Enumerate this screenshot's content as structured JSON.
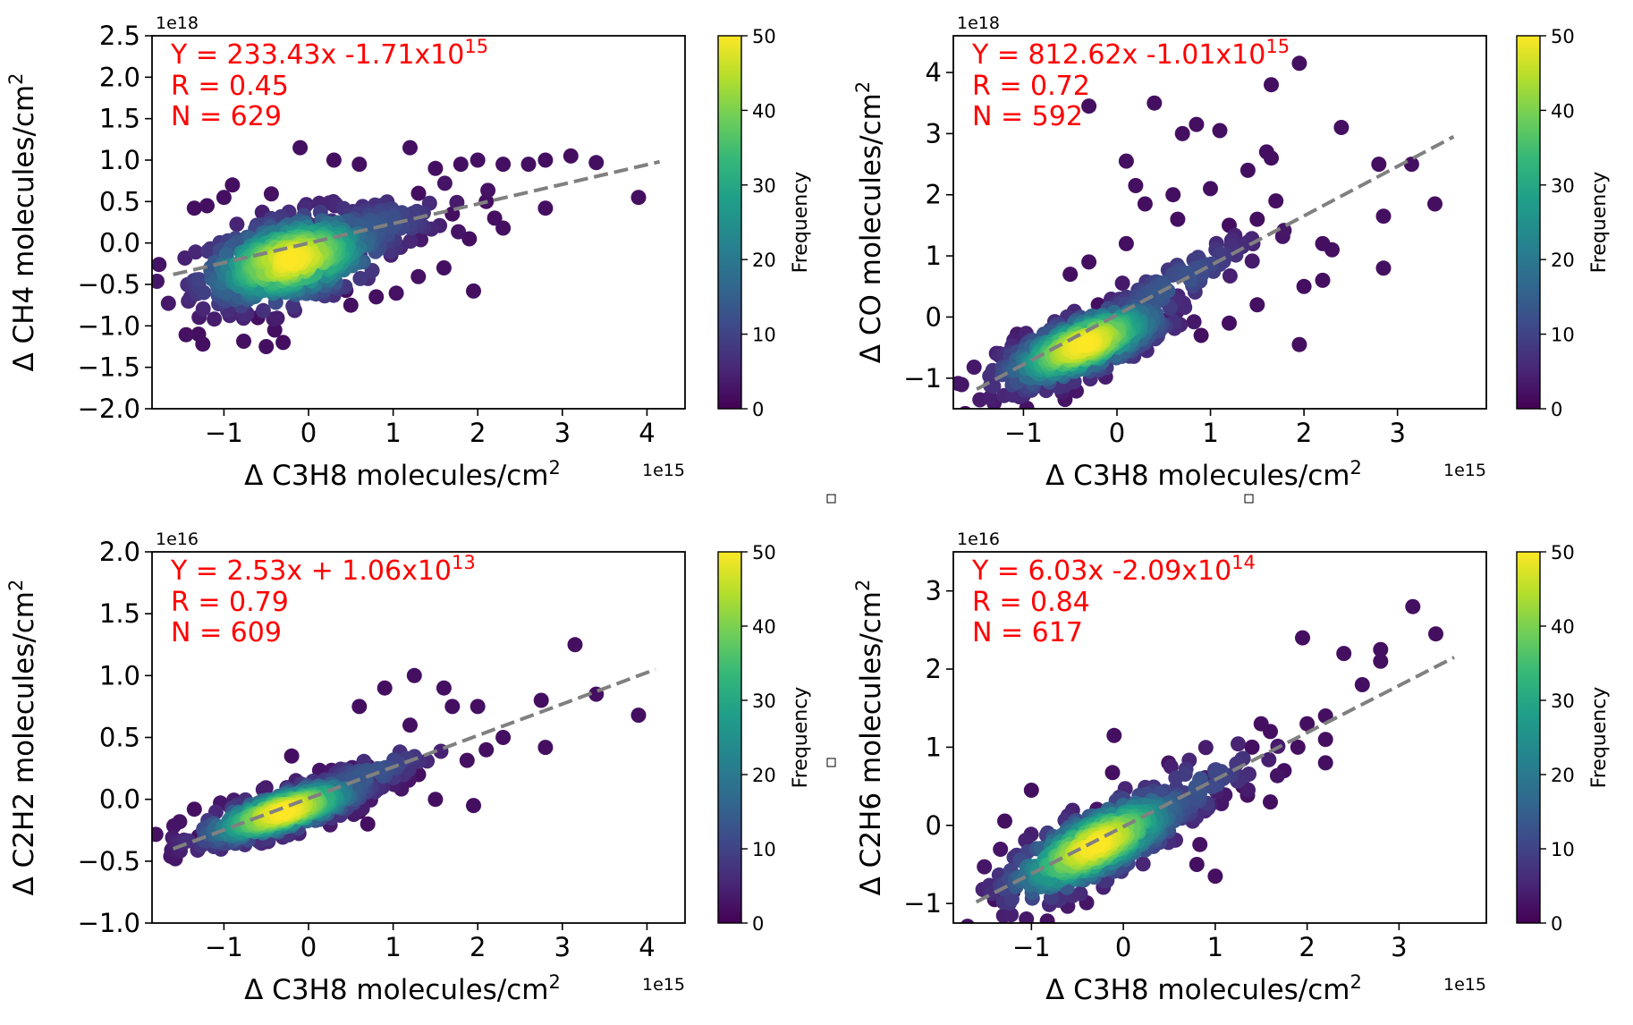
{
  "chart_data": [
    {
      "type": "scatter",
      "x_offset_label": "1e15",
      "y_offset_label": "1e18",
      "xlabel": "Δ C3H8 molecules/cm",
      "xlabel_sup": "2",
      "ylabel": "Δ CH4 molecules/cm",
      "ylabel_sup": "2",
      "xlim": [
        -1.85,
        4.45
      ],
      "ylim": [
        -2.0,
        2.5
      ],
      "xticks": [
        "−1",
        "0",
        "1",
        "2",
        "3",
        "4"
      ],
      "xtick_values": [
        -1,
        0,
        1,
        2,
        3,
        4
      ],
      "yticks": [
        "−2.0",
        "−1.5",
        "−1.0",
        "−0.5",
        "0.0",
        "0.5",
        "1.0",
        "1.5",
        "2.0",
        "2.5"
      ],
      "ytick_values": [
        -2.0,
        -1.5,
        -1.0,
        -0.5,
        0.0,
        0.5,
        1.0,
        1.5,
        2.0,
        2.5
      ],
      "fit": {
        "slope_label": "Y = 233.43x -1.71x10",
        "exp": "15",
        "r_label": "R = 0.45",
        "n_label": "N = 629",
        "line": [
          [
            -1.6,
            -0.38
          ],
          [
            4.15,
            0.98
          ]
        ]
      },
      "cluster": {
        "cx": -0.2,
        "cy": -0.2,
        "sx": 0.55,
        "sy": 0.28,
        "rho": 0.4
      },
      "outliers": [
        [
          -1.25,
          -1.22
        ],
        [
          -1.3,
          -1.1
        ],
        [
          -1.35,
          0.42
        ],
        [
          -1.2,
          0.45
        ],
        [
          -0.9,
          -0.75
        ],
        [
          -0.5,
          -1.25
        ],
        [
          -0.4,
          -1.05
        ],
        [
          -0.3,
          -1.2
        ],
        [
          -0.1,
          1.15
        ],
        [
          0.3,
          1.0
        ],
        [
          0.6,
          0.95
        ],
        [
          1.2,
          1.15
        ],
        [
          1.5,
          0.9
        ],
        [
          1.8,
          0.95
        ],
        [
          2.0,
          1.0
        ],
        [
          2.3,
          0.95
        ],
        [
          2.6,
          0.95
        ],
        [
          2.8,
          1.0
        ],
        [
          3.1,
          1.05
        ],
        [
          3.4,
          0.97
        ],
        [
          3.9,
          0.55
        ],
        [
          2.8,
          0.42
        ],
        [
          2.3,
          0.18
        ],
        [
          2.2,
          0.3
        ],
        [
          1.9,
          0.05
        ],
        [
          1.6,
          -0.3
        ],
        [
          1.95,
          -0.58
        ],
        [
          0.8,
          -0.65
        ],
        [
          0.5,
          -0.75
        ],
        [
          -0.6,
          -0.9
        ],
        [
          1.3,
          0.6
        ],
        [
          2.1,
          0.5
        ],
        [
          1.7,
          0.35
        ],
        [
          -0.9,
          0.7
        ],
        [
          -1.0,
          0.55
        ]
      ],
      "colorbar": {
        "label": "Frequency",
        "ticks": [
          "0",
          "10",
          "20",
          "30",
          "40",
          "50"
        ],
        "tick_values": [
          0,
          10,
          20,
          30,
          40,
          50
        ],
        "range": [
          0,
          50
        ]
      }
    },
    {
      "type": "scatter",
      "x_offset_label": "1e15",
      "y_offset_label": "1e18",
      "xlabel": "Δ C3H8 molecules/cm",
      "xlabel_sup": "2",
      "ylabel": "Δ CO molecules/cm",
      "ylabel_sup": "2",
      "xlim": [
        -1.75,
        3.95
      ],
      "ylim": [
        -1.5,
        4.6
      ],
      "xticks": [
        "−1",
        "0",
        "1",
        "2",
        "3"
      ],
      "xtick_values": [
        -1,
        0,
        1,
        2,
        3
      ],
      "yticks": [
        "−1",
        "0",
        "1",
        "2",
        "3",
        "4"
      ],
      "ytick_values": [
        -1,
        0,
        1,
        2,
        3,
        4
      ],
      "fit": {
        "slope_label": "Y = 812.62x -1.01x10",
        "exp": "15",
        "r_label": "R = 0.72",
        "n_label": "N = 592",
        "line": [
          [
            -1.5,
            -1.18
          ],
          [
            3.6,
            2.95
          ]
        ]
      },
      "cluster": {
        "cx": -0.35,
        "cy": -0.45,
        "sx": 0.45,
        "sy": 0.35,
        "rho": 0.7
      },
      "outliers": [
        [
          -0.3,
          3.45
        ],
        [
          0.4,
          3.5
        ],
        [
          0.7,
          3.0
        ],
        [
          0.85,
          3.15
        ],
        [
          1.1,
          3.05
        ],
        [
          1.65,
          3.8
        ],
        [
          1.95,
          4.15
        ],
        [
          2.4,
          3.1
        ],
        [
          3.15,
          2.5
        ],
        [
          3.4,
          1.85
        ],
        [
          2.8,
          2.5
        ],
        [
          2.85,
          1.65
        ],
        [
          2.85,
          0.8
        ],
        [
          2.2,
          1.2
        ],
        [
          2.2,
          0.6
        ],
        [
          2.3,
          1.1
        ],
        [
          1.95,
          -0.45
        ],
        [
          1.2,
          -0.1
        ],
        [
          1.6,
          2.7
        ],
        [
          1.65,
          2.6
        ],
        [
          1.7,
          1.9
        ],
        [
          1.4,
          2.4
        ],
        [
          1.0,
          2.1
        ],
        [
          0.6,
          2.0
        ],
        [
          0.1,
          2.55
        ],
        [
          0.3,
          1.85
        ],
        [
          0.2,
          2.15
        ],
        [
          0.65,
          1.6
        ],
        [
          1.2,
          1.5
        ],
        [
          1.5,
          1.6
        ],
        [
          -0.5,
          0.7
        ],
        [
          -0.3,
          0.9
        ],
        [
          0.1,
          1.2
        ],
        [
          -0.2,
          0.2
        ],
        [
          0.9,
          -0.3
        ],
        [
          1.5,
          0.2
        ],
        [
          2.0,
          0.5
        ]
      ],
      "colorbar": {
        "label": "Frequency",
        "ticks": [
          "0",
          "10",
          "20",
          "30",
          "40",
          "50"
        ],
        "tick_values": [
          0,
          10,
          20,
          30,
          40,
          50
        ],
        "range": [
          0,
          50
        ]
      }
    },
    {
      "type": "scatter",
      "x_offset_label": "1e15",
      "y_offset_label": "1e16",
      "xlabel": "Δ C3H8 molecules/cm",
      "xlabel_sup": "2",
      "ylabel": "Δ C2H2 molecules/cm",
      "ylabel_sup": "2",
      "xlim": [
        -1.85,
        4.45
      ],
      "ylim": [
        -1.0,
        2.0
      ],
      "xticks": [
        "−1",
        "0",
        "1",
        "2",
        "3",
        "4"
      ],
      "xtick_values": [
        -1,
        0,
        1,
        2,
        3,
        4
      ],
      "yticks": [
        "−1.0",
        "−0.5",
        "0.0",
        "0.5",
        "1.0",
        "1.5",
        "2.0"
      ],
      "ytick_values": [
        -1.0,
        -0.5,
        0.0,
        0.5,
        1.0,
        1.5,
        2.0
      ],
      "fit": {
        "slope_label": "Y = 2.53x + 1.06x10",
        "exp": "13",
        "r_label": "R = 0.79",
        "n_label": "N = 609",
        "line": [
          [
            -1.6,
            -0.4
          ],
          [
            4.1,
            1.05
          ]
        ]
      },
      "cluster": {
        "cx": -0.3,
        "cy": -0.1,
        "sx": 0.5,
        "sy": 0.13,
        "rho": 0.75
      },
      "outliers": [
        [
          -1.35,
          -0.08
        ],
        [
          -1.3,
          -0.3
        ],
        [
          3.15,
          1.25
        ],
        [
          3.4,
          0.85
        ],
        [
          3.9,
          0.68
        ],
        [
          2.8,
          0.42
        ],
        [
          2.75,
          0.8
        ],
        [
          2.3,
          0.5
        ],
        [
          2.0,
          0.75
        ],
        [
          1.95,
          -0.05
        ],
        [
          1.25,
          1.0
        ],
        [
          1.6,
          0.9
        ],
        [
          1.7,
          0.75
        ],
        [
          1.2,
          0.6
        ],
        [
          0.9,
          0.9
        ],
        [
          0.6,
          0.75
        ],
        [
          -0.2,
          0.35
        ],
        [
          0.7,
          -0.2
        ],
        [
          0.6,
          -0.1
        ],
        [
          1.5,
          0.0
        ],
        [
          1.3,
          0.2
        ],
        [
          2.1,
          0.4
        ]
      ],
      "colorbar": {
        "label": "Frequency",
        "ticks": [
          "0",
          "10",
          "20",
          "30",
          "40",
          "50"
        ],
        "tick_values": [
          0,
          10,
          20,
          30,
          40,
          50
        ],
        "range": [
          0,
          50
        ]
      }
    },
    {
      "type": "scatter",
      "x_offset_label": "1e15",
      "y_offset_label": "1e16",
      "xlabel": "Δ C3H8 molecules/cm",
      "xlabel_sup": "2",
      "ylabel": "Δ C2H6 molecules/cm",
      "ylabel_sup": "2",
      "xlim": [
        -1.85,
        3.95
      ],
      "ylim": [
        -1.25,
        3.5
      ],
      "xticks": [
        "−1",
        "0",
        "1",
        "2",
        "3"
      ],
      "xtick_values": [
        -1,
        0,
        1,
        2,
        3
      ],
      "yticks": [
        "−1",
        "0",
        "1",
        "2",
        "3"
      ],
      "ytick_values": [
        -1,
        0,
        1,
        2,
        3
      ],
      "fit": {
        "slope_label": "Y = 6.03x -2.09x10",
        "exp": "14",
        "r_label": "R = 0.84",
        "n_label": "N = 617",
        "line": [
          [
            -1.6,
            -0.98
          ],
          [
            3.6,
            2.15
          ]
        ]
      },
      "cluster": {
        "cx": -0.3,
        "cy": -0.25,
        "sx": 0.5,
        "sy": 0.35,
        "rho": 0.75
      },
      "outliers": [
        [
          -1.4,
          -0.95
        ],
        [
          -1.2,
          -0.85
        ],
        [
          -1.0,
          0.45
        ],
        [
          -0.1,
          1.15
        ],
        [
          3.15,
          2.8
        ],
        [
          3.4,
          2.45
        ],
        [
          2.8,
          2.25
        ],
        [
          2.8,
          2.1
        ],
        [
          2.4,
          2.2
        ],
        [
          1.95,
          2.4
        ],
        [
          2.6,
          1.8
        ],
        [
          2.2,
          1.4
        ],
        [
          2.2,
          1.1
        ],
        [
          2.2,
          0.8
        ],
        [
          1.5,
          1.3
        ],
        [
          1.6,
          1.2
        ],
        [
          1.9,
          1.0
        ],
        [
          1.0,
          -0.65
        ],
        [
          1.6,
          0.3
        ],
        [
          1.3,
          0.5
        ],
        [
          0.8,
          -0.5
        ],
        [
          1.4,
          1.0
        ],
        [
          1.75,
          0.7
        ],
        [
          2.0,
          1.3
        ]
      ],
      "colorbar": {
        "label": "Frequency",
        "ticks": [
          "0",
          "10",
          "20",
          "30",
          "40",
          "50"
        ],
        "tick_values": [
          0,
          10,
          20,
          30,
          40,
          50
        ],
        "range": [
          0,
          50
        ]
      }
    }
  ],
  "colors": {
    "annotation": "#ff0000",
    "fit_line": "#808080",
    "axis": "#000000",
    "viridis": [
      "#440154",
      "#482878",
      "#3e4989",
      "#31688e",
      "#26828e",
      "#1f9e89",
      "#35b779",
      "#6ece58",
      "#b5de2b",
      "#fde725"
    ]
  }
}
